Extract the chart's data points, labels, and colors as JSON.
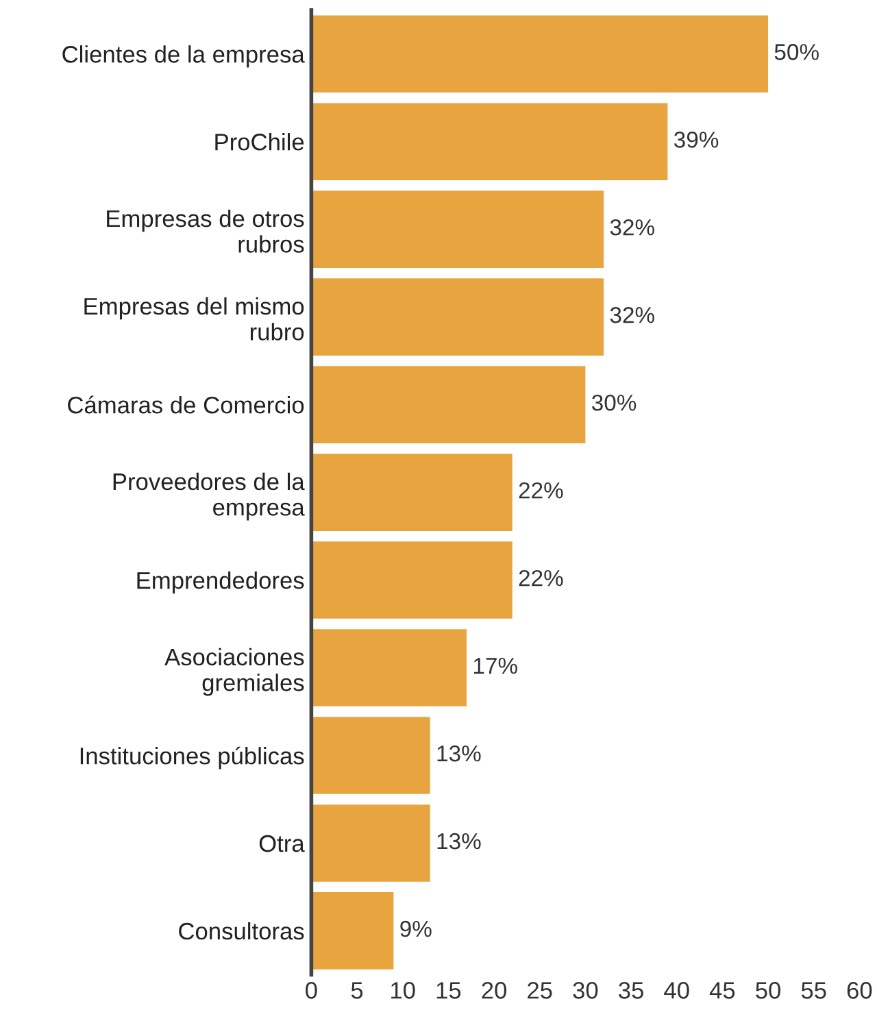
{
  "chart_data": {
    "type": "bar",
    "orientation": "horizontal",
    "categories": [
      "Clientes de la empresa",
      "ProChile",
      "Empresas de otros\nrubros",
      "Empresas del mismo\nrubro",
      "Cámaras de Comercio",
      "Proveedores de la\nempresa",
      "Emprendedores",
      "Asociaciones\ngremiales",
      "Instituciones públicas",
      "Otra",
      "Consultoras"
    ],
    "values": [
      50,
      39,
      32,
      32,
      30,
      22,
      22,
      17,
      13,
      13,
      9
    ],
    "color": "#e8a53f",
    "value_labels": [
      "50%",
      "39%",
      "32%",
      "32%",
      "30%",
      "22%",
      "22%",
      "17%",
      "13%",
      "13%",
      "9%"
    ],
    "xlim": [
      0,
      60
    ],
    "xticks": [
      0,
      5,
      10,
      15,
      20,
      25,
      30,
      35,
      40,
      45,
      50,
      55,
      60
    ],
    "grid": false,
    "legend": false
  }
}
